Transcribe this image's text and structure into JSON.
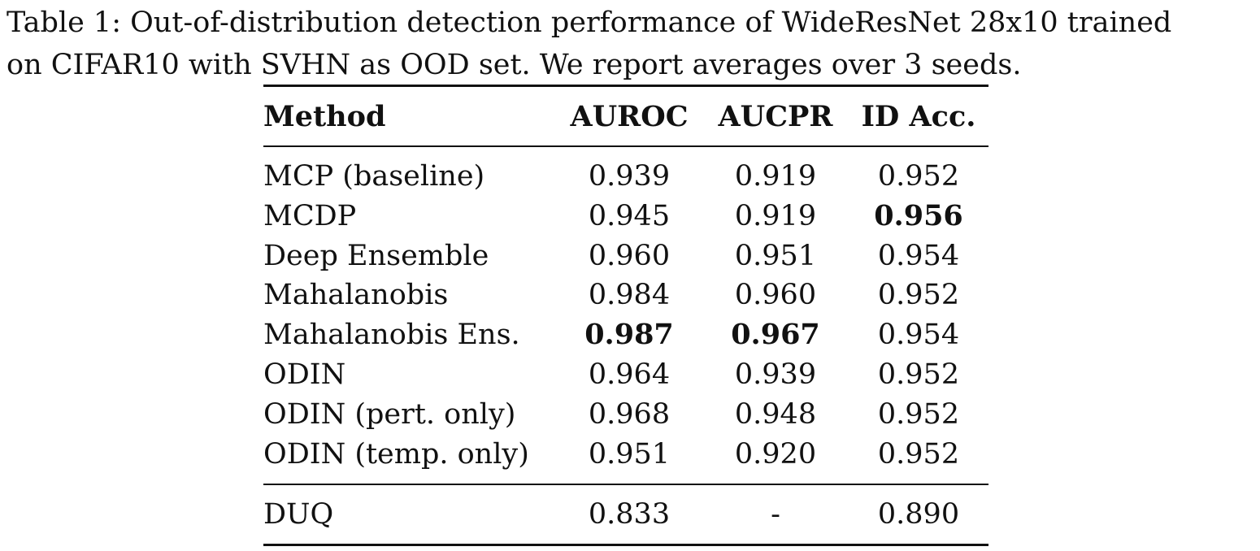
{
  "caption": {
    "line1": "Table 1: Out-of-distribution detection performance of WideResNet 28x10 trained",
    "line2": "on CIFAR10 with SVHN as OOD set. We report averages over 3 seeds."
  },
  "table": {
    "headers": {
      "method": "Method",
      "auroc": "AUROC",
      "aucpr": "AUCPR",
      "acc": "ID Acc."
    },
    "rows": [
      {
        "method": "MCP (baseline)",
        "auroc": "0.939",
        "aucpr": "0.919",
        "acc": "0.952"
      },
      {
        "method": "MCDP",
        "auroc": "0.945",
        "aucpr": "0.919",
        "acc": "0.956"
      },
      {
        "method": "Deep Ensemble",
        "auroc": "0.960",
        "aucpr": "0.951",
        "acc": "0.954"
      },
      {
        "method": "Mahalanobis",
        "auroc": "0.984",
        "aucpr": "0.960",
        "acc": "0.952"
      },
      {
        "method": "Mahalanobis Ens.",
        "auroc": "0.987",
        "aucpr": "0.967",
        "acc": "0.954"
      },
      {
        "method": "ODIN",
        "auroc": "0.964",
        "aucpr": "0.939",
        "acc": "0.952"
      },
      {
        "method": "ODIN (pert. only)",
        "auroc": "0.968",
        "aucpr": "0.948",
        "acc": "0.952"
      },
      {
        "method": "ODIN (temp. only)",
        "auroc": "0.951",
        "aucpr": "0.920",
        "acc": "0.952"
      }
    ],
    "final_row": {
      "method": "DUQ",
      "auroc": "0.833",
      "aucpr": "-",
      "acc": "0.890"
    }
  }
}
